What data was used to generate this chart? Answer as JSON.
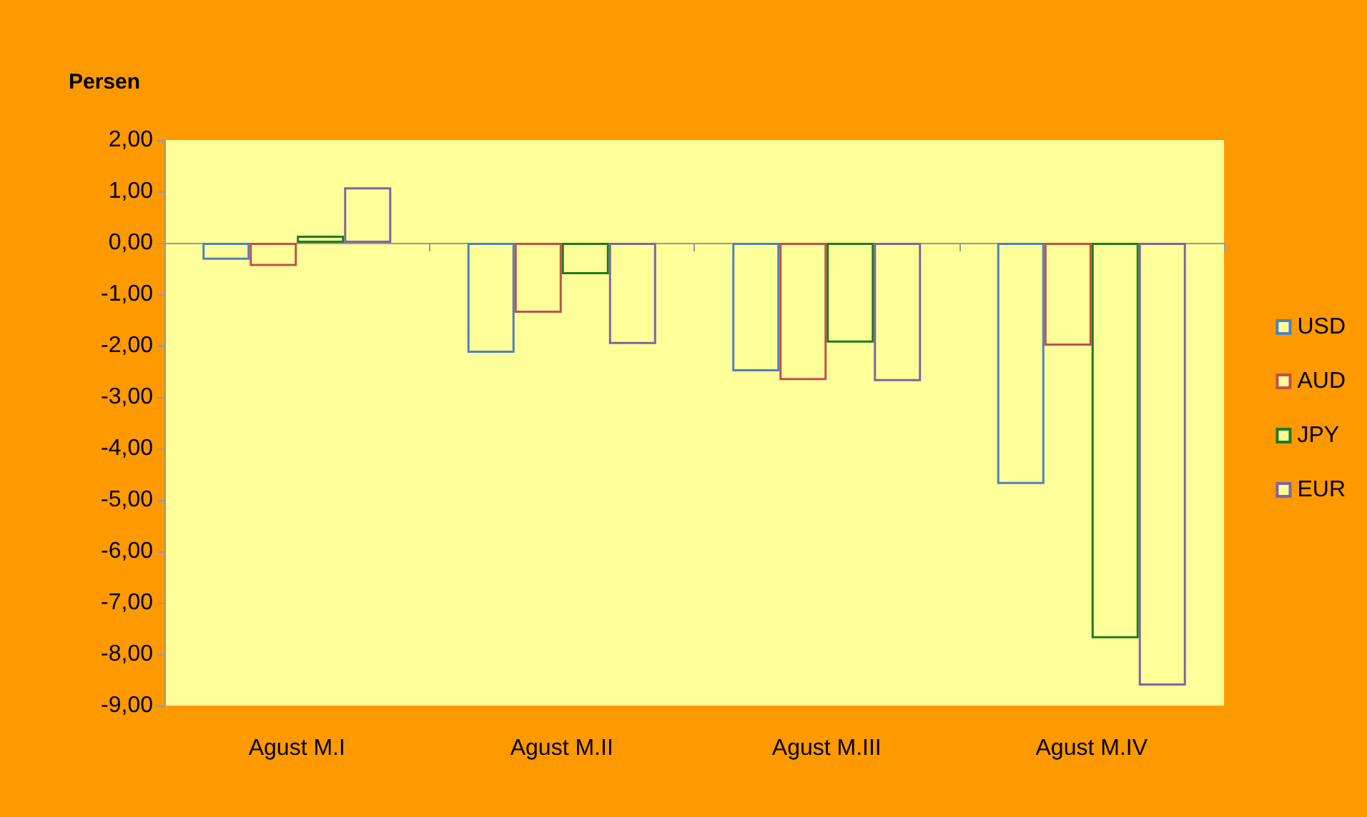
{
  "chart_data": {
    "type": "bar",
    "ylabel": "Persen",
    "categories": [
      "Agust M.I",
      "Agust M.II",
      "Agust M.III",
      "Agust M.IV"
    ],
    "series": [
      {
        "name": "USD",
        "color": "#4f81bd",
        "values": [
          -0.33,
          -2.14,
          -2.5,
          -4.69
        ]
      },
      {
        "name": "AUD",
        "color": "#c0504d",
        "values": [
          -0.45,
          -1.36,
          -2.67,
          -2.0
        ]
      },
      {
        "name": "JPY",
        "color": "#1f7a1f",
        "values": [
          0.14,
          -0.61,
          -1.94,
          -7.69
        ]
      },
      {
        "name": "EUR",
        "color": "#8064a2",
        "values": [
          1.08,
          -1.97,
          -2.69,
          -8.61
        ]
      }
    ],
    "ylim": [
      -9,
      2
    ],
    "yticks": [
      {
        "value": 2,
        "label": "2,00"
      },
      {
        "value": 1,
        "label": "1,00"
      },
      {
        "value": 0,
        "label": "0,00"
      },
      {
        "value": -1,
        "label": "-1,00"
      },
      {
        "value": -2,
        "label": "-2,00"
      },
      {
        "value": -3,
        "label": "-3,00"
      },
      {
        "value": -4,
        "label": "-4,00"
      },
      {
        "value": -5,
        "label": "-5,00"
      },
      {
        "value": -6,
        "label": "-6,00"
      },
      {
        "value": -7,
        "label": "-7,00"
      },
      {
        "value": -8,
        "label": "-8,00"
      },
      {
        "value": -9,
        "label": "-9,00"
      }
    ],
    "legend": "right"
  }
}
